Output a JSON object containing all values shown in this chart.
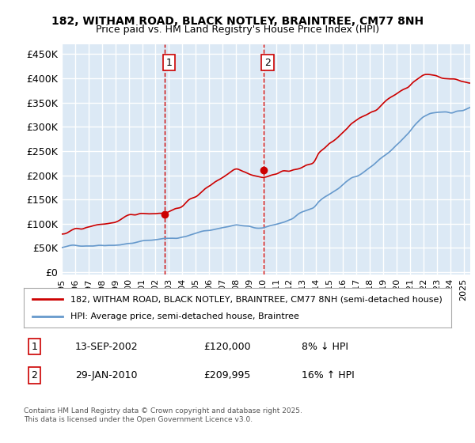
{
  "title_line1": "182, WITHAM ROAD, BLACK NOTLEY, BRAINTREE, CM77 8NH",
  "title_line2": "Price paid vs. HM Land Registry's House Price Index (HPI)",
  "ylabel": "",
  "xlabel": "",
  "yticks": [
    0,
    50000,
    100000,
    150000,
    200000,
    250000,
    300000,
    350000,
    400000,
    450000
  ],
  "ytick_labels": [
    "£0",
    "£50K",
    "£100K",
    "£150K",
    "£200K",
    "£250K",
    "£300K",
    "£350K",
    "£400K",
    "£450K"
  ],
  "ylim": [
    -5000,
    470000
  ],
  "xlim_start": 1995.0,
  "xlim_end": 2025.5,
  "sale1_date": 2002.71,
  "sale1_price": 120000,
  "sale1_label": "1",
  "sale2_date": 2010.08,
  "sale2_price": 209995,
  "sale2_label": "2",
  "background_color": "#ffffff",
  "plot_bg_color": "#dce9f5",
  "grid_color": "#ffffff",
  "red_line_color": "#cc0000",
  "blue_line_color": "#6699cc",
  "vline_color": "#cc0000",
  "shade_color": "#dce9f5",
  "legend_line1": "182, WITHAM ROAD, BLACK NOTLEY, BRAINTREE, CM77 8NH (semi-detached house)",
  "legend_line2": "HPI: Average price, semi-detached house, Braintree",
  "table_row1": [
    "1",
    "13-SEP-2002",
    "£120,000",
    "8% ↓ HPI"
  ],
  "table_row2": [
    "2",
    "29-JAN-2010",
    "£209,995",
    "16% ↑ HPI"
  ],
  "footnote": "Contains HM Land Registry data © Crown copyright and database right 2025.\nThis data is licensed under the Open Government Licence v3.0.",
  "xticks": [
    1995,
    1996,
    1997,
    1998,
    1999,
    2000,
    2001,
    2002,
    2003,
    2004,
    2005,
    2006,
    2007,
    2008,
    2009,
    2010,
    2011,
    2012,
    2013,
    2014,
    2015,
    2016,
    2017,
    2018,
    2019,
    2020,
    2021,
    2022,
    2023,
    2024,
    2025
  ]
}
